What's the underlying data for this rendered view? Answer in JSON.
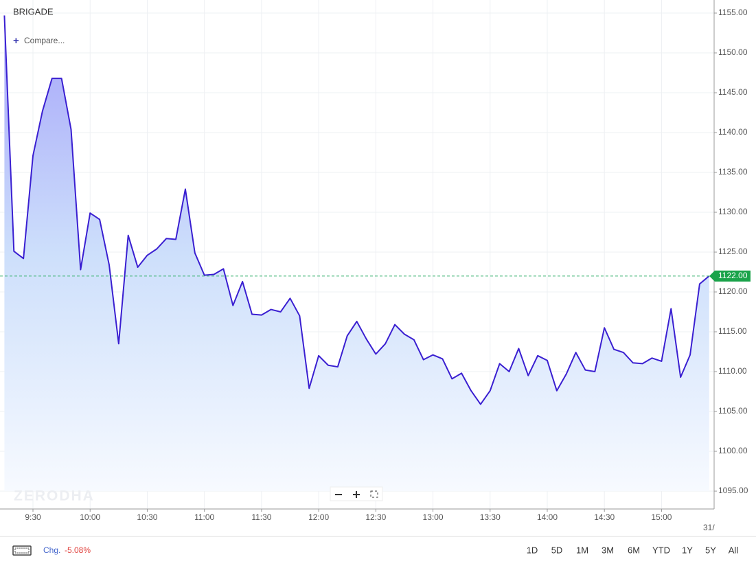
{
  "symbol": "BRIGADE",
  "compare_label": "Compare...",
  "watermark": "ZERODHA",
  "change_label": "Chg.",
  "change_value": "-5.08%",
  "date_label": "31/",
  "ranges": [
    "1D",
    "5D",
    "1M",
    "3M",
    "6M",
    "YTD",
    "1Y",
    "5Y",
    "All"
  ],
  "chart_data": {
    "type": "line",
    "categories": [
      null,
      null,
      null,
      "9:30",
      null,
      null,
      null,
      null,
      null,
      "10:00",
      null,
      null,
      null,
      null,
      null,
      "10:30",
      null,
      null,
      null,
      null,
      null,
      "11:00",
      null,
      null,
      null,
      null,
      null,
      "11:30",
      null,
      null,
      null,
      null,
      null,
      "12:00",
      null,
      null,
      null,
      null,
      null,
      "12:30",
      null,
      null,
      null,
      null,
      null,
      "13:00",
      null,
      null,
      null,
      null,
      null,
      "13:30",
      null,
      null,
      null,
      null,
      null,
      "14:00",
      null,
      null,
      null,
      null,
      null,
      "14:30",
      null,
      null,
      null,
      null,
      null,
      "15:00",
      null,
      null,
      null,
      null,
      null
    ],
    "series": [
      {
        "name": "BRIGADE",
        "color": "#3a1fd1",
        "values": [
          1154.7,
          1125.1,
          1124.2,
          1137.1,
          1142.7,
          1146.8,
          1146.8,
          1140.4,
          1122.8,
          1129.9,
          1129.1,
          1123.4,
          1113.5,
          1127.1,
          1123.1,
          1124.6,
          1125.4,
          1126.7,
          1126.6,
          1132.9,
          1124.9,
          1122.1,
          1122.2,
          1122.9,
          1118.3,
          1121.3,
          1117.2,
          1117.1,
          1117.8,
          1117.5,
          1119.2,
          1117.0,
          1107.9,
          1112.0,
          1110.8,
          1110.6,
          1114.5,
          1116.3,
          1114.1,
          1112.2,
          1113.5,
          1115.9,
          1114.7,
          1114.0,
          1111.5,
          1112.1,
          1111.6,
          1109.1,
          1109.8,
          1107.6,
          1105.9,
          1107.6,
          1111.0,
          1110.0,
          1112.9,
          1109.5,
          1112.0,
          1111.4,
          1107.6,
          1109.7,
          1112.4,
          1110.2,
          1110.0,
          1115.5,
          1112.8,
          1112.4,
          1111.1,
          1111.0,
          1111.7,
          1111.3,
          1117.9,
          1109.3,
          1112.1,
          1121.0,
          1122.0
        ]
      }
    ],
    "ylim": [
      1092.76,
      1156.64
    ],
    "yticks": [
      {
        "value": 1095,
        "label": "1095.00"
      },
      {
        "value": 1100,
        "label": "1100.00"
      },
      {
        "value": 1105,
        "label": "1105.00"
      },
      {
        "value": 1110,
        "label": "1110.00"
      },
      {
        "value": 1115,
        "label": "1115.00"
      },
      {
        "value": 1120,
        "label": "1120.00"
      },
      {
        "value": 1125,
        "label": "1125.00"
      },
      {
        "value": 1130,
        "label": "1130.00"
      },
      {
        "value": 1135,
        "label": "1135.00"
      },
      {
        "value": 1140,
        "label": "1140.00"
      },
      {
        "value": 1145,
        "label": "1145.00"
      },
      {
        "value": 1150,
        "label": "1150.00"
      },
      {
        "value": 1155,
        "label": "1155.00"
      }
    ],
    "last_price": {
      "value": 1122,
      "label": "1122.00"
    },
    "grid": true
  }
}
